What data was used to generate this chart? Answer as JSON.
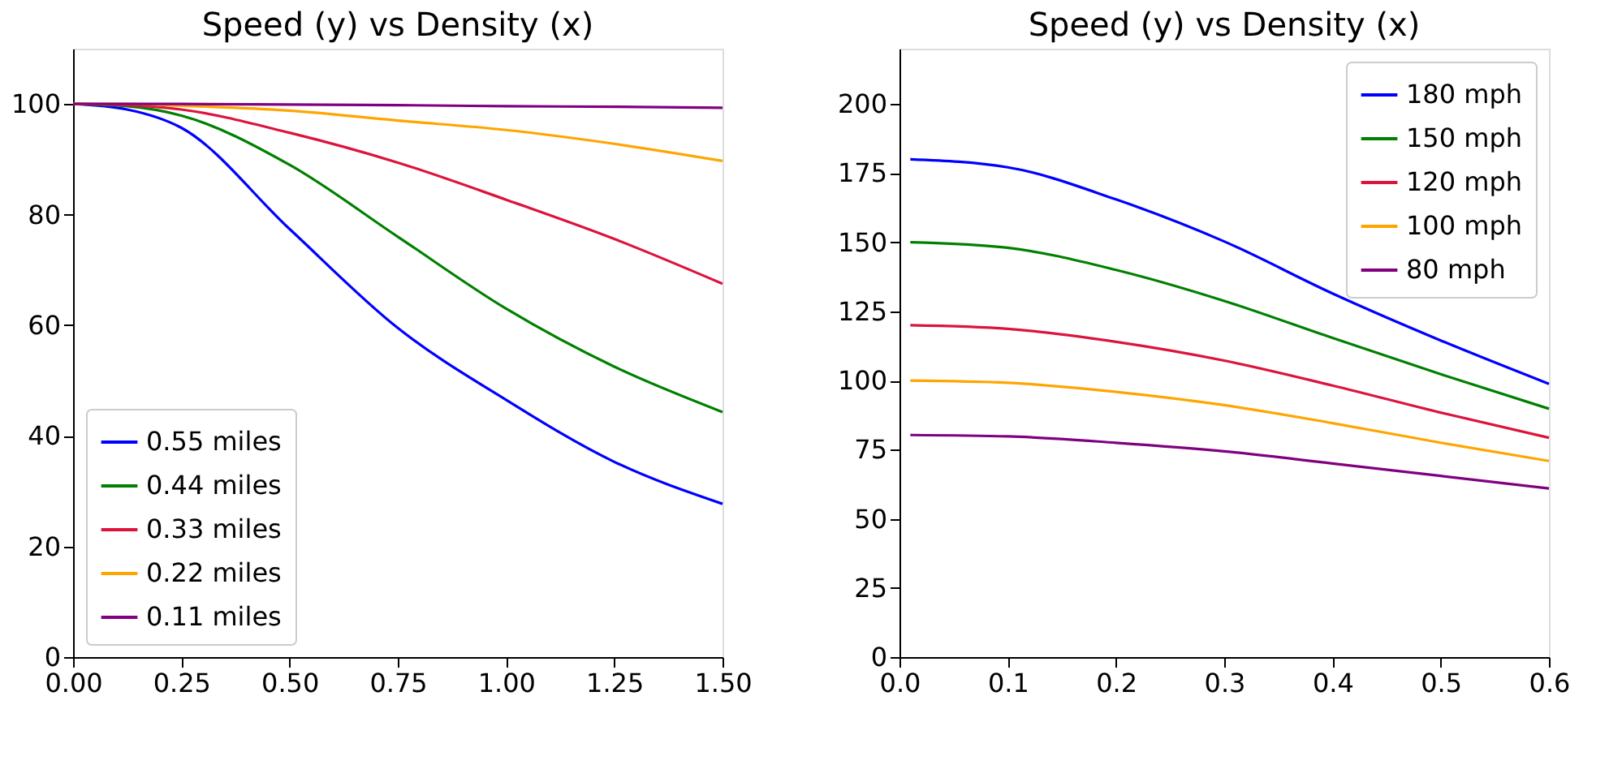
{
  "chart_data": [
    {
      "type": "line",
      "title": "Speed (y) vs Density (x)",
      "x": [
        0,
        0.125,
        0.25,
        0.5,
        0.75,
        1.0,
        1.25,
        1.5
      ],
      "xlim": [
        0,
        1.5
      ],
      "xticks": [
        {
          "value": 0,
          "label": "0.00"
        },
        {
          "value": 0.25,
          "label": "0.25"
        },
        {
          "value": 0.5,
          "label": "0.50"
        },
        {
          "value": 0.75,
          "label": "0.75"
        },
        {
          "value": 1.0,
          "label": "1.00"
        },
        {
          "value": 1.25,
          "label": "1.25"
        },
        {
          "value": 1.5,
          "label": "1.50"
        }
      ],
      "ylim": [
        0,
        110
      ],
      "yticks": [
        0,
        20,
        40,
        60,
        80,
        100
      ],
      "grid": false,
      "legend": "bottom left",
      "marker": "none",
      "line_style": "solid",
      "series": [
        {
          "name": "0.55 miles",
          "color": "#0000ff",
          "values": [
            100,
            99,
            95.7,
            77.4,
            59.5,
            46.5,
            35.3,
            27.7
          ]
        },
        {
          "name": "0.44 miles",
          "color": "#008000",
          "values": [
            100,
            99.6,
            97.9,
            89,
            76,
            63,
            52.5,
            44.3
          ]
        },
        {
          "name": "0.33 miles",
          "color": "#dc143c",
          "values": [
            100,
            99.8,
            99,
            94.8,
            89.4,
            82.7,
            75.6,
            67.5
          ]
        },
        {
          "name": "0.22 miles",
          "color": "#ffa500",
          "values": [
            100,
            100,
            99.7,
            98.8,
            97,
            95.3,
            92.8,
            89.7
          ]
        },
        {
          "name": "0.11 miles",
          "color": "#800080",
          "values": [
            100,
            100,
            100,
            99.9,
            99.8,
            99.6,
            99.5,
            99.3
          ]
        }
      ]
    },
    {
      "type": "line",
      "title": "Speed (y) vs Density (x)",
      "x": [
        0.01,
        0.1,
        0.2,
        0.3,
        0.4,
        0.5,
        0.6
      ],
      "xlim": [
        0,
        0.6
      ],
      "xticks": [
        {
          "value": 0,
          "label": "0.0"
        },
        0.1,
        0.2,
        0.3,
        0.4,
        0.5,
        0.6
      ],
      "ylim": [
        0,
        220
      ],
      "yticks": [
        0,
        25,
        50,
        75,
        100,
        125,
        150,
        175,
        200
      ],
      "grid": false,
      "legend": "top right",
      "marker": "none",
      "line_style": "solid",
      "series": [
        {
          "name": "180 mph",
          "color": "#0000ff",
          "values": [
            180,
            177.1,
            165.5,
            150.3,
            131.5,
            114.5,
            98.8
          ]
        },
        {
          "name": "150 mph",
          "color": "#008000",
          "values": [
            150,
            148,
            140,
            128.8,
            115.4,
            102.3,
            89.8
          ]
        },
        {
          "name": "120 mph",
          "color": "#dc143c",
          "values": [
            120,
            118.7,
            114,
            107.2,
            98.2,
            88.4,
            79.3
          ]
        },
        {
          "name": "100 mph",
          "color": "#ffa500",
          "values": [
            100,
            99.2,
            95.9,
            91.1,
            84.6,
            77.5,
            70.9
          ]
        },
        {
          "name": "80 mph",
          "color": "#800080",
          "values": [
            80.3,
            79.8,
            77.5,
            74.4,
            70,
            65.5,
            61
          ]
        }
      ]
    }
  ]
}
